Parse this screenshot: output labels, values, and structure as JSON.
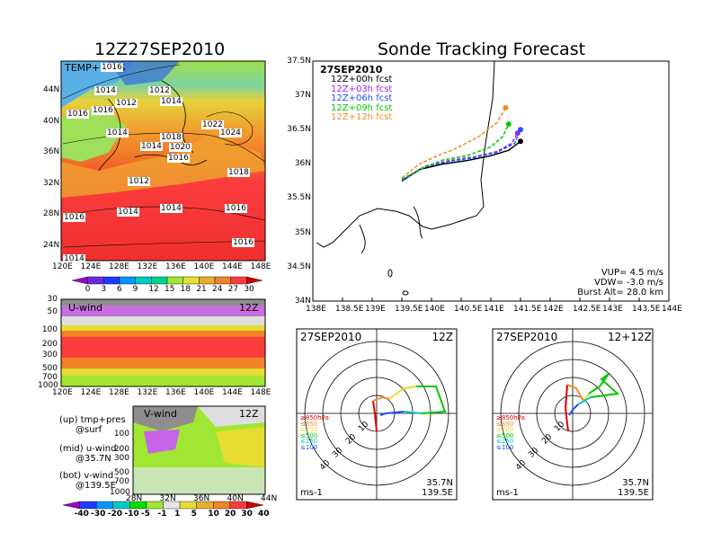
{
  "left_title": "12Z27SEP2010",
  "right_title": "Sonde Tracking Forecast",
  "map_panel": {
    "label": "TEMP+PRES",
    "x_ticks": [
      "120E",
      "124E",
      "128E",
      "132E",
      "136E",
      "140E",
      "144E",
      "148E"
    ],
    "y_ticks": [
      "44N",
      "40N",
      "36N",
      "32N",
      "28N",
      "24N"
    ],
    "isobar_labels": [
      "1016",
      "1014",
      "1012",
      "1016",
      "1012",
      "1014",
      "1016",
      "1014",
      "1014",
      "1018",
      "1022",
      "1024",
      "1020",
      "1016",
      "1018",
      "1012",
      "1016",
      "1014",
      "1014",
      "1016",
      "1016",
      "1014"
    ]
  },
  "temp_colorbar": {
    "labels": [
      "0",
      "3",
      "6",
      "9",
      "12",
      "15",
      "18",
      "21",
      "24",
      "27",
      "30"
    ],
    "colors": [
      "#a000c8",
      "#6e28dc",
      "#1e3cff",
      "#0096ff",
      "#00c8c8",
      "#00d28c",
      "#a0e632",
      "#e6dc32",
      "#e6af2d",
      "#f08228",
      "#fa3c3c",
      "#c80000"
    ]
  },
  "u_panel": {
    "label": "U-wind",
    "time": "12Z",
    "y_ticks": [
      "30",
      "50",
      "100",
      "200",
      "300",
      "500",
      "700",
      "1000"
    ],
    "x_ticks": [
      "120E",
      "124E",
      "128E",
      "132E",
      "136E",
      "140E",
      "144E",
      "148E"
    ]
  },
  "v_panel": {
    "label": "V-wind",
    "time": "12Z",
    "y_ticks": [
      "100",
      "200",
      "300",
      "500",
      "700",
      "1000"
    ],
    "x_ticks": [
      "28N",
      "32N",
      "36N",
      "40N",
      "44N"
    ]
  },
  "wind_colorbar": {
    "labels": [
      "-40",
      "-30",
      "-20",
      "-10",
      "-5",
      "-1",
      "1",
      "5",
      "10",
      "20",
      "30",
      "40"
    ],
    "colors": [
      "#a000c8",
      "#1e3cff",
      "#0096ff",
      "#00c8c8",
      "#00dc00",
      "#a0e632",
      "#e6e6e6",
      "#e6dc32",
      "#e6af2d",
      "#f08228",
      "#fa3c3c",
      "#c80000"
    ]
  },
  "notes": [
    {
      "line1": "(up) tmp+pres",
      "line2": "@surf"
    },
    {
      "line1": "(mid) u-wind",
      "line2": "@35.7N"
    },
    {
      "line1": "(bot) v-wind",
      "line2": "@139.5E"
    }
  ],
  "track_panel": {
    "date": "27SEP2010",
    "x_ticks": [
      "138E",
      "138.5E",
      "139E",
      "139.5E",
      "140E",
      "140.5E",
      "141E",
      "141.5E",
      "142E",
      "142.5E",
      "143E",
      "143.5E",
      "144E"
    ],
    "y_ticks": [
      "37.5N",
      "37N",
      "36.5N",
      "36N",
      "35.5N",
      "35N",
      "34.5N",
      "34N"
    ],
    "stats": [
      "VUP= 4.5 m/s",
      "VDW= -3.0 m/s",
      "Burst Alt= 28.0 km"
    ]
  },
  "chart_data": {
    "type": "line",
    "title": "Sonde Tracking Forecast",
    "xlim": [
      138,
      144
    ],
    "ylim": [
      34,
      37.5
    ],
    "series": [
      {
        "name": "12Z+00h fcst",
        "color": "#000000",
        "x": [
          139.5,
          139.8,
          140.2,
          140.6,
          141.0,
          141.3,
          141.5
        ],
        "y": [
          35.75,
          35.92,
          36.0,
          36.05,
          36.12,
          36.2,
          36.33
        ]
      },
      {
        "name": "12Z+03h fcst",
        "color": "#a020f0",
        "x": [
          139.5,
          139.9,
          140.3,
          140.7,
          141.1,
          141.35,
          141.45
        ],
        "y": [
          35.77,
          35.97,
          36.05,
          36.1,
          36.18,
          36.3,
          36.45
        ]
      },
      {
        "name": "12Z+06h fcst",
        "color": "#1e50ff",
        "x": [
          139.5,
          139.9,
          140.3,
          140.7,
          141.1,
          141.4,
          141.5
        ],
        "y": [
          35.76,
          35.96,
          36.04,
          36.09,
          36.17,
          36.3,
          36.5
        ]
      },
      {
        "name": "12Z+09h fcst",
        "color": "#00c800",
        "x": [
          139.5,
          139.9,
          140.2,
          140.6,
          141.0,
          141.2,
          141.3
        ],
        "y": [
          35.78,
          35.96,
          36.06,
          36.12,
          36.25,
          36.4,
          36.58
        ]
      },
      {
        "name": "12Z+12h fcst",
        "color": "#f08c28",
        "x": [
          139.5,
          139.8,
          140.1,
          140.4,
          140.8,
          141.1,
          141.25
        ],
        "y": [
          35.8,
          36.0,
          36.12,
          36.22,
          36.4,
          36.6,
          36.82
        ]
      }
    ]
  },
  "hodo_left": {
    "date": "27SEP2010",
    "time": "12Z",
    "ring_labels": [
      "10",
      "20",
      "30",
      "40"
    ],
    "legend": [
      {
        "text": "≥850hPa",
        "color": "#e00000"
      },
      {
        "text": "≤850",
        "color": "#f08c28"
      },
      {
        "text": "≤700",
        "color": "#e6dc32"
      },
      {
        "text": "≤500",
        "color": "#00c800"
      },
      {
        "text": "≤250",
        "color": "#00c8c8"
      },
      {
        "text": "≤100",
        "color": "#1e50ff"
      }
    ],
    "loc1": "35.7N",
    "loc2": "139.5E",
    "unit": "ms-1"
  },
  "hodo_right": {
    "date": "27SEP2010",
    "time": "12+12Z",
    "ring_labels": [
      "10",
      "20",
      "30",
      "40"
    ],
    "legend": [
      {
        "text": "≥850hPa",
        "color": "#e00000"
      },
      {
        "text": "≤850",
        "color": "#f08c28"
      },
      {
        "text": "≤700",
        "color": "#e6dc32"
      },
      {
        "text": "≤500",
        "color": "#00c800"
      },
      {
        "text": "≤250",
        "color": "#00c8c8"
      },
      {
        "text": "≤100",
        "color": "#1e50ff"
      }
    ],
    "loc1": "35.7N",
    "loc2": "139.5E",
    "unit": "ms-1"
  }
}
